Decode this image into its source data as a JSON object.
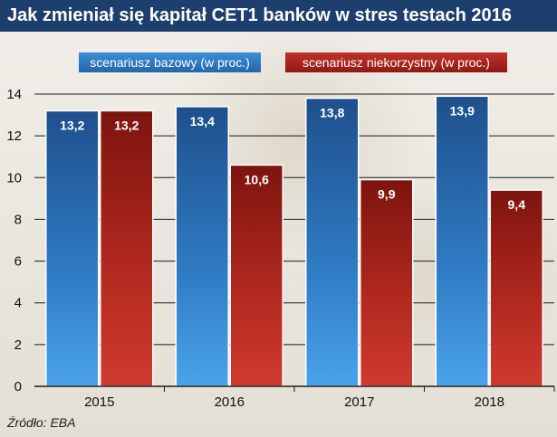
{
  "title": "Jak zmieniał się kapitał CET1 banków w stres testach 2016",
  "source": "Źródło: EBA",
  "colors": {
    "base": "#2a6fb8",
    "adverse": "#a9241c",
    "title_bg": "#1d3f6e"
  },
  "chart_data": {
    "type": "bar",
    "title": "Jak zmieniał się kapitał CET1 banków w stres testach 2016",
    "categories": [
      "2015",
      "2016",
      "2017",
      "2018"
    ],
    "series": [
      {
        "name": "scenariusz bazowy (w proc.)",
        "values": [
          13.2,
          13.4,
          13.8,
          13.9
        ],
        "labels": [
          "13,2",
          "13,4",
          "13,8",
          "13,9"
        ]
      },
      {
        "name": "scenariusz niekorzystny (w proc.)",
        "values": [
          13.2,
          10.6,
          9.9,
          9.4
        ],
        "labels": [
          "13,2",
          "10,6",
          "9,9",
          "9,4"
        ]
      }
    ],
    "yticks": [
      "0",
      "2",
      "4",
      "6",
      "8",
      "10",
      "12",
      "14"
    ],
    "ylim": [
      0,
      14
    ],
    "xlabel": "",
    "ylabel": "",
    "grid": true,
    "legend": "top"
  }
}
